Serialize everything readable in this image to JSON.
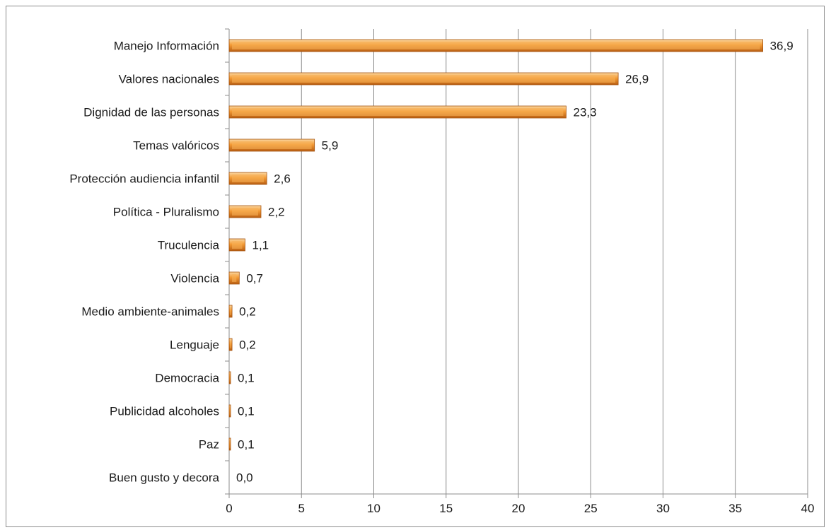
{
  "chart_data": {
    "type": "bar",
    "orientation": "horizontal",
    "title": "",
    "xlabel": "",
    "ylabel": "",
    "xlim": [
      0,
      40
    ],
    "x_ticks": [
      0,
      5,
      10,
      15,
      20,
      25,
      30,
      35,
      40
    ],
    "grid": "vertical",
    "legend": "none",
    "bar_color": "#f0962c",
    "categories": [
      "Manejo Información",
      "Valores nacionales",
      "Dignidad de las personas",
      "Temas valóricos",
      "Protección audiencia infantil",
      "Política - Pluralismo",
      "Truculencia",
      "Violencia",
      "Medio ambiente-animales",
      "Lenguaje",
      "Democracia",
      "Publicidad alcoholes",
      "Paz",
      "Buen gusto y decora"
    ],
    "values": [
      36.9,
      26.9,
      23.3,
      5.9,
      2.6,
      2.2,
      1.1,
      0.7,
      0.2,
      0.2,
      0.1,
      0.1,
      0.1,
      0.0
    ],
    "value_labels": [
      "36,9",
      "26,9",
      "23,3",
      "5,9",
      "2,6",
      "2,2",
      "1,1",
      "0,7",
      "0,2",
      "0,2",
      "0,1",
      "0,1",
      "0,1",
      "0,0"
    ]
  }
}
